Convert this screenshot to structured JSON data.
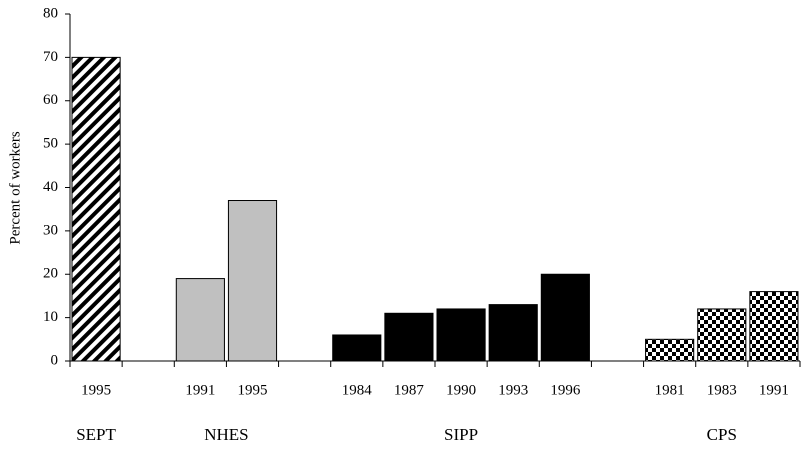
{
  "chart_data": {
    "type": "bar",
    "y_label": "Percent of workers",
    "categories": [
      "1995",
      null,
      "1991",
      "1995",
      null,
      "1984",
      "1987",
      "1990",
      "1993",
      "1996",
      null,
      "1981",
      "1983",
      "1991"
    ],
    "series": [
      {
        "name": "SEPT",
        "pattern": "diagonal",
        "color": "#000000",
        "values": [
          70,
          null,
          null,
          null,
          null,
          null,
          null,
          null,
          null,
          null,
          null,
          null,
          null,
          null
        ]
      },
      {
        "name": "NHES",
        "pattern": "solid",
        "color": "#c0c0c0",
        "values": [
          null,
          null,
          19,
          37,
          null,
          null,
          null,
          null,
          null,
          null,
          null,
          null,
          null,
          null
        ]
      },
      {
        "name": "SIPP",
        "pattern": "solid",
        "color": "#000000",
        "values": [
          null,
          null,
          null,
          null,
          null,
          6,
          11,
          12,
          13,
          20,
          null,
          null,
          null,
          null
        ]
      },
      {
        "name": "CPS",
        "pattern": "checker",
        "color": "#000000",
        "values": [
          null,
          null,
          null,
          null,
          null,
          null,
          null,
          null,
          null,
          null,
          null,
          5,
          12,
          16
        ]
      }
    ],
    "ylim": [
      0,
      80
    ],
    "yticks": [
      0,
      10,
      20,
      30,
      40,
      50,
      60,
      70,
      80
    ],
    "grid": false
  }
}
